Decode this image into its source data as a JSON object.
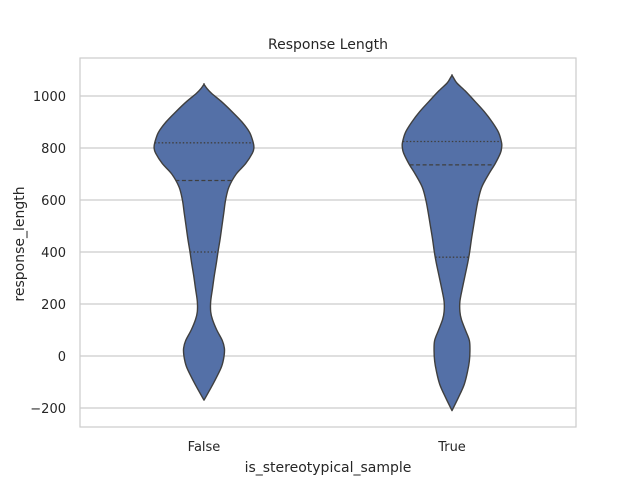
{
  "chart_data": {
    "type": "violin",
    "title": "Response Length",
    "xlabel": "is_stereotypical_sample",
    "ylabel": "response_length",
    "categories": [
      "False",
      "True"
    ],
    "ylim": [
      -270,
      1140
    ],
    "yticks": [
      -200,
      0,
      200,
      400,
      600,
      800,
      1000
    ],
    "ytick_labels": [
      "−200",
      "0",
      "200",
      "400",
      "600",
      "800",
      "1000"
    ],
    "grid": "horizontal",
    "fill_color": "#5470a7",
    "edge_color": "#3f3f3f",
    "violins": [
      {
        "category": "False",
        "min": -170,
        "max": 1045,
        "quartiles": [
          400,
          675,
          820
        ],
        "profile": [
          [
            -170,
            0.0
          ],
          [
            -120,
            0.24
          ],
          [
            -80,
            0.42
          ],
          [
            -40,
            0.58
          ],
          [
            0,
            0.66
          ],
          [
            30,
            0.67
          ],
          [
            60,
            0.6
          ],
          [
            100,
            0.42
          ],
          [
            140,
            0.28
          ],
          [
            170,
            0.22
          ],
          [
            210,
            0.22
          ],
          [
            260,
            0.28
          ],
          [
            310,
            0.34
          ],
          [
            360,
            0.41
          ],
          [
            400,
            0.46
          ],
          [
            450,
            0.53
          ],
          [
            500,
            0.59
          ],
          [
            550,
            0.65
          ],
          [
            600,
            0.71
          ],
          [
            650,
            0.82
          ],
          [
            700,
            1.06
          ],
          [
            740,
            1.37
          ],
          [
            780,
            1.59
          ],
          [
            800,
            1.64
          ],
          [
            820,
            1.62
          ],
          [
            860,
            1.5
          ],
          [
            900,
            1.25
          ],
          [
            940,
            0.92
          ],
          [
            980,
            0.56
          ],
          [
            1010,
            0.25
          ],
          [
            1030,
            0.09
          ],
          [
            1045,
            0.0
          ]
        ]
      },
      {
        "category": "True",
        "min": -210,
        "max": 1080,
        "quartiles": [
          380,
          735,
          825
        ],
        "profile": [
          [
            -210,
            0.0
          ],
          [
            -160,
            0.21
          ],
          [
            -110,
            0.4
          ],
          [
            -60,
            0.51
          ],
          [
            -20,
            0.57
          ],
          [
            20,
            0.59
          ],
          [
            60,
            0.57
          ],
          [
            100,
            0.44
          ],
          [
            140,
            0.31
          ],
          [
            170,
            0.26
          ],
          [
            210,
            0.26
          ],
          [
            260,
            0.34
          ],
          [
            310,
            0.43
          ],
          [
            360,
            0.52
          ],
          [
            400,
            0.58
          ],
          [
            450,
            0.64
          ],
          [
            500,
            0.71
          ],
          [
            550,
            0.78
          ],
          [
            600,
            0.86
          ],
          [
            650,
            0.98
          ],
          [
            700,
            1.21
          ],
          [
            740,
            1.42
          ],
          [
            780,
            1.59
          ],
          [
            800,
            1.63
          ],
          [
            820,
            1.63
          ],
          [
            860,
            1.53
          ],
          [
            900,
            1.32
          ],
          [
            940,
            1.06
          ],
          [
            980,
            0.75
          ],
          [
            1020,
            0.43
          ],
          [
            1050,
            0.16
          ],
          [
            1070,
            0.05
          ],
          [
            1080,
            0.0
          ]
        ]
      }
    ]
  }
}
